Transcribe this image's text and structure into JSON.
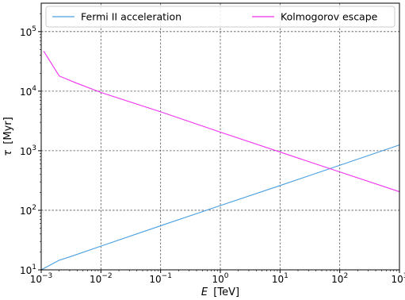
{
  "chart_data": {
    "type": "line",
    "title": "",
    "xlabel": {
      "var": "E",
      "unit": "[TeV]"
    },
    "ylabel": {
      "var": "τ",
      "unit": "[Myr]"
    },
    "xscale": "log",
    "yscale": "log",
    "xlim": [
      0.001,
      1000
    ],
    "ylim": [
      10,
      300000
    ],
    "grid": true,
    "legend_placement": "top",
    "x_ticks": [
      {
        "value": 0.001,
        "base": "10",
        "exp": "−3"
      },
      {
        "value": 0.01,
        "base": "10",
        "exp": "−2"
      },
      {
        "value": 0.1,
        "base": "10",
        "exp": "−1"
      },
      {
        "value": 1,
        "base": "10",
        "exp": "0"
      },
      {
        "value": 10,
        "base": "10",
        "exp": "1"
      },
      {
        "value": 100,
        "base": "10",
        "exp": "2"
      },
      {
        "value": 1000,
        "base": "10",
        "exp": "3"
      }
    ],
    "y_ticks": [
      {
        "value": 10,
        "base": "10",
        "exp": "1"
      },
      {
        "value": 100,
        "base": "10",
        "exp": "2"
      },
      {
        "value": 1000,
        "base": "10",
        "exp": "3"
      },
      {
        "value": 10000,
        "base": "10",
        "exp": "4"
      },
      {
        "value": 100000,
        "base": "10",
        "exp": "5"
      }
    ],
    "series": [
      {
        "name": "Fermi II acceleration",
        "color": "#4a9fe0",
        "x": [
          0.001,
          0.002,
          0.003,
          0.01,
          0.1,
          1,
          10,
          100,
          1000
        ],
        "y": [
          10,
          14.5,
          16.5,
          25,
          55,
          120,
          260,
          570,
          1250
        ]
      },
      {
        "name": "Kolmogorov escape",
        "color": "#ee33ee",
        "x": [
          0.0011,
          0.002,
          0.004,
          0.01,
          0.1,
          1,
          10,
          100,
          1000
        ],
        "y": [
          47000,
          18000,
          13500,
          9500,
          4500,
          2050,
          950,
          440,
          205
        ]
      }
    ]
  }
}
